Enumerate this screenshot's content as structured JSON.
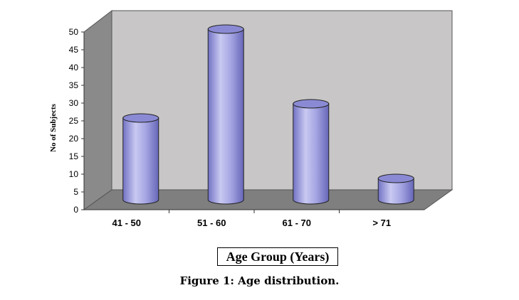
{
  "chart_data": {
    "type": "bar",
    "categories": [
      "41 - 50",
      "51 - 60",
      "61 - 70",
      "> 71"
    ],
    "values": [
      23,
      48,
      27,
      6
    ],
    "xlabel": "Age Group (Years)",
    "ylabel": "No of Subjects",
    "ylim": [
      0,
      50
    ],
    "yticks": [
      0,
      5,
      10,
      15,
      20,
      25,
      30,
      35,
      40,
      45,
      50
    ],
    "bar_shape": "cylinder",
    "bar_color": "#9999dd",
    "wall_color": "#c8c6c6",
    "side_wall_color": "#8a8a8a",
    "grid": false
  },
  "caption": "Figure 1: Age distribution."
}
